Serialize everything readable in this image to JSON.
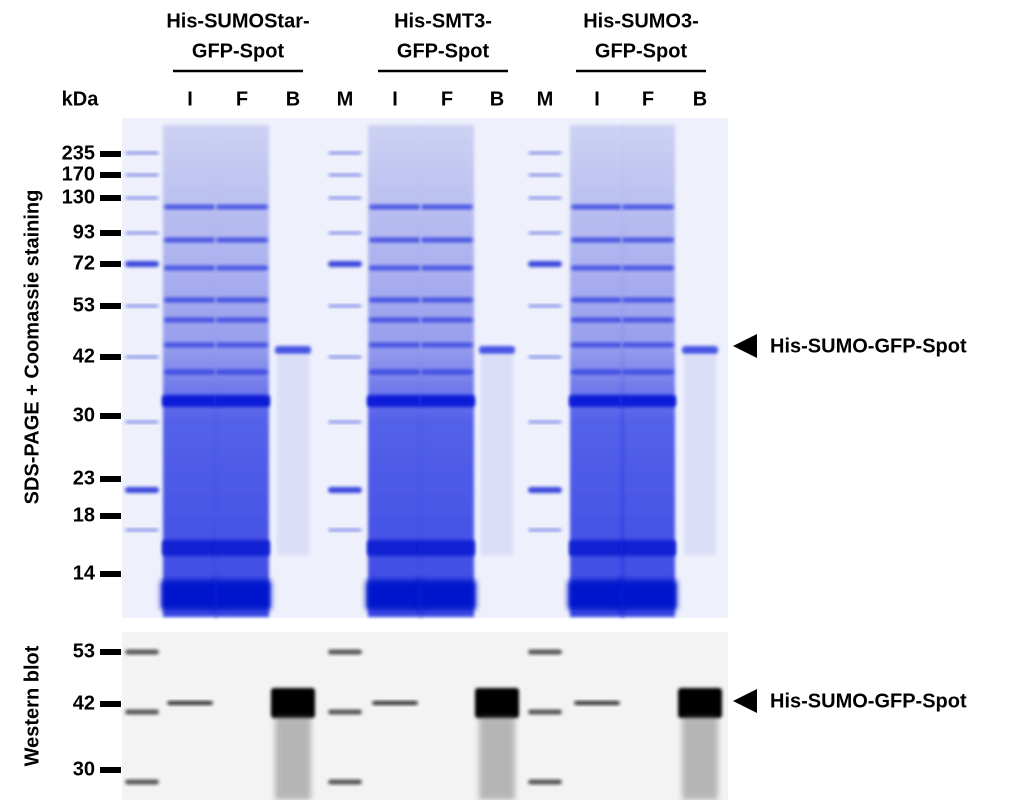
{
  "header": {
    "unit_label": "kDa",
    "groups": [
      {
        "lines": [
          "His-SUMOStar-",
          "GFP-Spot"
        ]
      },
      {
        "lines": [
          "His-SMT3-",
          "GFP-Spot"
        ]
      },
      {
        "lines": [
          "His-SUMO3-",
          "GFP-Spot"
        ]
      }
    ]
  },
  "lanes": [
    "I",
    "F",
    "B",
    "M",
    "I",
    "F",
    "B",
    "M",
    "I",
    "F",
    "B"
  ],
  "sds_panel": {
    "label": "SDS-PAGE + Coomassie staining",
    "markers": [
      235,
      170,
      130,
      93,
      72,
      53,
      42,
      30,
      23,
      18,
      14
    ],
    "annotation": "His-SUMO-GFP-Spot"
  },
  "western_panel": {
    "label": "Western blot",
    "markers": [
      53,
      42,
      30
    ],
    "annotation": "His-SUMO-GFP-Spot"
  }
}
